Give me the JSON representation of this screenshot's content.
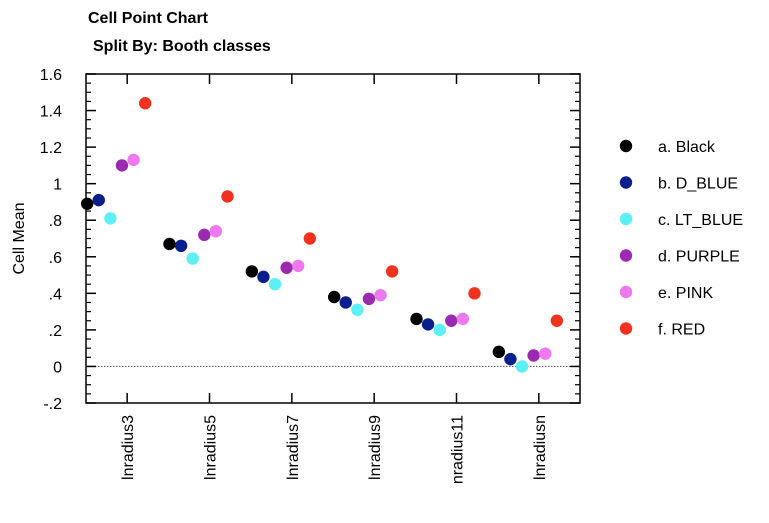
{
  "chart_data": {
    "type": "scatter",
    "title": "Cell Point Chart",
    "subtitle": "Split By: Booth classes",
    "xlabel": "",
    "ylabel": "Cell Mean",
    "ylim": [
      -0.2,
      1.6
    ],
    "yticks": [
      {
        "value": 1.6,
        "label": "1.6"
      },
      {
        "value": 1.4,
        "label": "1.4"
      },
      {
        "value": 1.2,
        "label": "1.2"
      },
      {
        "value": 1.0,
        "label": "1"
      },
      {
        "value": 0.8,
        "label": ".8"
      },
      {
        "value": 0.6,
        "label": ".6"
      },
      {
        "value": 0.4,
        "label": ".4"
      },
      {
        "value": 0.2,
        "label": ".2"
      },
      {
        "value": 0.0,
        "label": "0"
      },
      {
        "value": -0.2,
        "label": "-.2"
      }
    ],
    "categories": [
      "lnradius3",
      "lnradius5",
      "lnradius7",
      "lnradius9",
      "nradius11",
      "lnradiusn"
    ],
    "reference_line": 0,
    "grid": false,
    "legend_position": "right",
    "series": [
      {
        "name": "a. Black",
        "color": "#000000",
        "values": [
          0.89,
          0.67,
          0.52,
          0.38,
          0.26,
          0.08
        ]
      },
      {
        "name": "b. D_BLUE",
        "color": "#0a1e8c",
        "values": [
          0.91,
          0.66,
          0.49,
          0.35,
          0.23,
          0.04
        ]
      },
      {
        "name": "c. LT_BLUE",
        "color": "#5cf0f4",
        "values": [
          0.81,
          0.59,
          0.45,
          0.31,
          0.2,
          0.0
        ]
      },
      {
        "name": "d. PURPLE",
        "color": "#9a2ab0",
        "values": [
          1.1,
          0.72,
          0.54,
          0.37,
          0.25,
          0.06
        ]
      },
      {
        "name": "e. PINK",
        "color": "#ee78ee",
        "values": [
          1.13,
          0.74,
          0.55,
          0.39,
          0.26,
          0.07
        ]
      },
      {
        "name": "f. RED",
        "color": "#f0321e",
        "values": [
          1.44,
          0.93,
          0.7,
          0.52,
          0.4,
          0.25
        ]
      }
    ]
  }
}
